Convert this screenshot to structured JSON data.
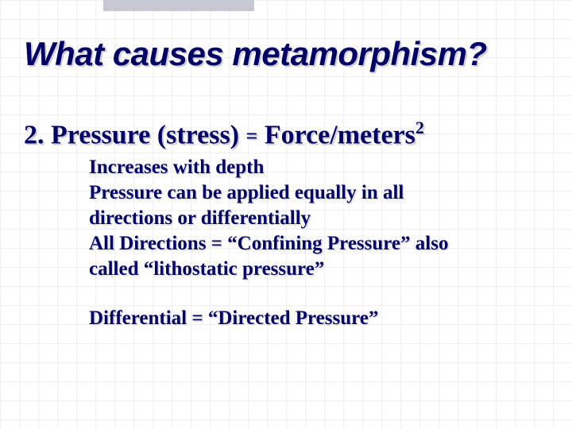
{
  "colors": {
    "text": "#000066",
    "shadow": "#d0d0d0",
    "grid": "#e6e6f0",
    "topbar": "#c8c8d4",
    "background": "#ffffff"
  },
  "title": "What causes metamorphism?",
  "heading": {
    "prefix": "2. Pressure (stress) ",
    "eq": "=",
    "suffix": " Force/meters",
    "exp": "2"
  },
  "body": {
    "line1": "Increases with depth",
    "line2": "Pressure can be applied equally in all directions or differentially",
    "line3": "All Directions = “Confining Pressure” also called “lithostatic pressure”",
    "line4": "Differential = “Directed Pressure”"
  }
}
